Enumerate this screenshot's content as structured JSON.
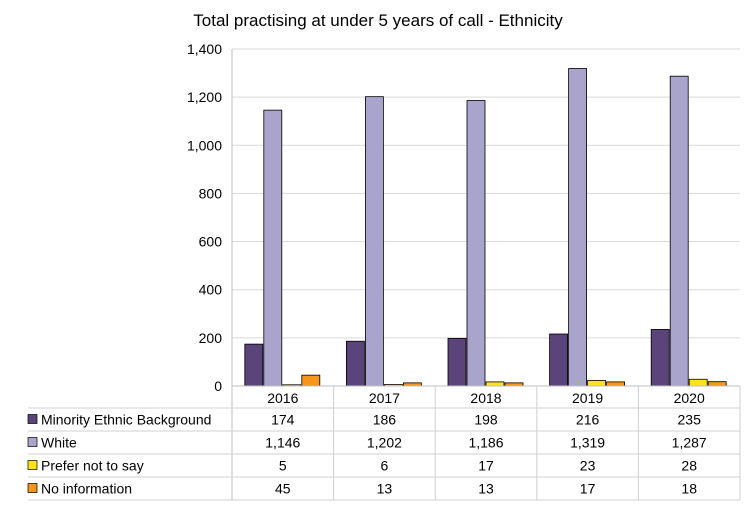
{
  "chart_data": {
    "type": "bar",
    "title": "Total practising at under 5 years of call - Ethnicity",
    "xlabel": "",
    "ylabel": "",
    "ylim": [
      0,
      1400
    ],
    "yticks": [
      "0",
      "200",
      "400",
      "600",
      "800",
      "1,000",
      "1,200",
      "1,400"
    ],
    "ytick_values": [
      0,
      200,
      400,
      600,
      800,
      1000,
      1200,
      1400
    ],
    "grid": true,
    "legend": "data-table-below",
    "categories": [
      "2016",
      "2017",
      "2018",
      "2019",
      "2020"
    ],
    "series": [
      {
        "name": "Minority Ethnic Background",
        "color": "#5b4479",
        "values": [
          174,
          186,
          198,
          216,
          235
        ],
        "labels": [
          "174",
          "186",
          "198",
          "216",
          "235"
        ]
      },
      {
        "name": "White",
        "color": "#a9a4cb",
        "values": [
          1146,
          1202,
          1186,
          1319,
          1287
        ],
        "labels": [
          "1,146",
          "1,202",
          "1,186",
          "1,319",
          "1,287"
        ]
      },
      {
        "name": "Prefer not to say",
        "color": "#ffe21c",
        "values": [
          5,
          6,
          17,
          23,
          28
        ],
        "labels": [
          "5",
          "6",
          "17",
          "23",
          "28"
        ]
      },
      {
        "name": "No information",
        "color": "#f4961c",
        "values": [
          45,
          13,
          13,
          17,
          18
        ],
        "labels": [
          "45",
          "13",
          "13",
          "17",
          "18"
        ]
      }
    ]
  }
}
